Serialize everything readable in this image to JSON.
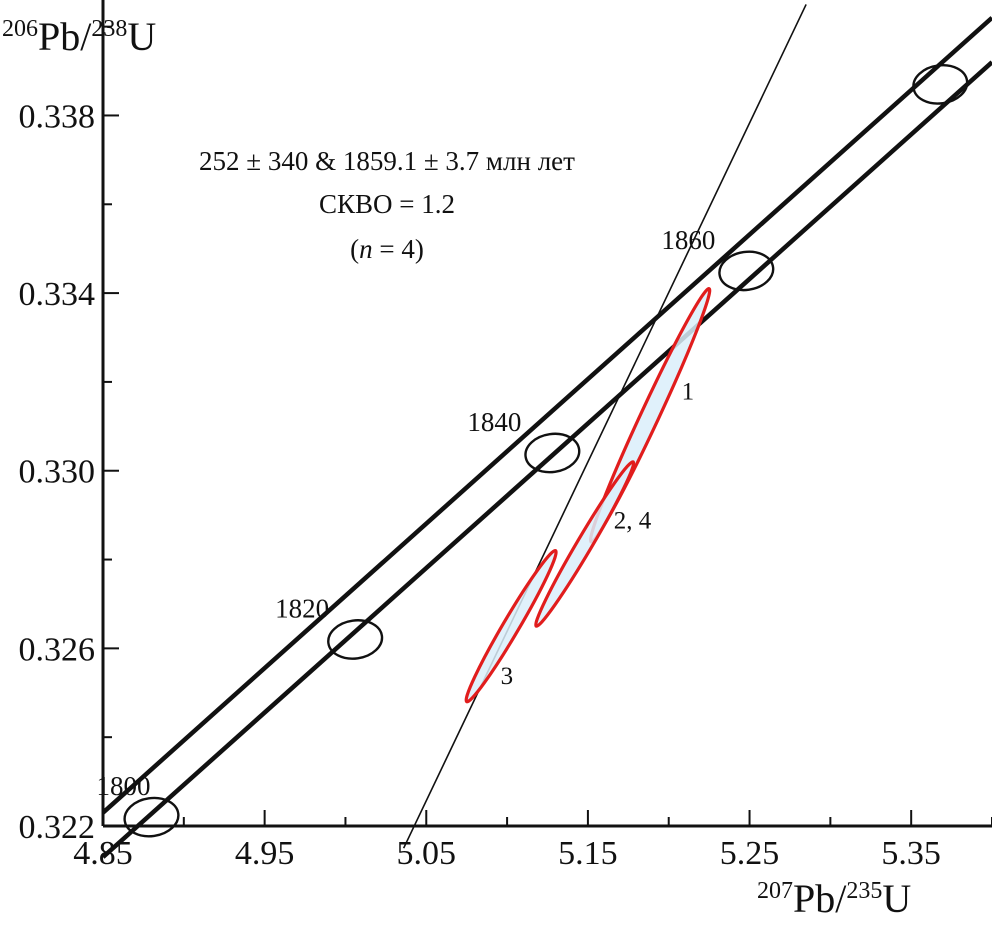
{
  "chart_data": {
    "type": "scatter",
    "subtype": "concordia-diagram",
    "xlabel": {
      "sup1": "207",
      "base1": "Pb/",
      "sup2": "235",
      "base2": "U"
    },
    "ylabel": {
      "sup1": "206",
      "base1": "Pb/",
      "sup2": "238",
      "base2": "U"
    },
    "xlim": [
      4.85,
      5.4
    ],
    "ylim": [
      0.322,
      0.3406
    ],
    "x_ticks": [
      4.85,
      4.95,
      5.05,
      5.15,
      5.25,
      5.35
    ],
    "x_tick_labels": [
      "4.85",
      "4.95",
      "5.05",
      "5.15",
      "5.25",
      "5.35"
    ],
    "y_ticks": [
      0.322,
      0.326,
      0.33,
      0.334,
      0.338
    ],
    "y_tick_labels": [
      "0.322",
      "0.326",
      "0.330",
      "0.334",
      "0.338"
    ],
    "grid": false,
    "annotation": {
      "line1": "252 ± 340 & 1859.1 ± 3.7 млн лет",
      "line2": "СКВО = 1.2",
      "line3_open": "(",
      "line3_n": "n",
      "line3_rest": " = 4)"
    },
    "concordia_band": {
      "upper_edge": [
        [
          4.85,
          0.3223
        ],
        [
          5.4,
          0.3402
        ]
      ],
      "lower_edge": [
        [
          4.85,
          0.3213
        ],
        [
          5.4,
          0.3392
        ]
      ]
    },
    "age_markers": [
      {
        "label": "1800",
        "x": 4.88,
        "y": 0.3222
      },
      {
        "label": "1820",
        "x": 5.006,
        "y": 0.3262
      },
      {
        "label": "1840",
        "x": 5.128,
        "y": 0.3304
      },
      {
        "label": "1860",
        "x": 5.248,
        "y": 0.3345
      },
      {
        "label": "",
        "x": 5.368,
        "y": 0.3387
      }
    ],
    "discordia": {
      "upper_intercept_age": "1859.1",
      "points": [
        [
          5.036,
          0.3215
        ],
        [
          5.285,
          0.3405
        ]
      ]
    },
    "data_points": [
      {
        "label": "1",
        "x": 5.188,
        "y": 0.3306,
        "ellipse_end_a": [
          5.152,
          0.3284
        ],
        "ellipse_end_b": [
          5.225,
          0.3341
        ]
      },
      {
        "label": "2, 4",
        "x": 5.148,
        "y": 0.3282,
        "ellipse_end_a": [
          5.118,
          0.3265
        ],
        "ellipse_end_b": [
          5.178,
          0.3302
        ]
      },
      {
        "label": "3",
        "x": 5.102,
        "y": 0.3263,
        "ellipse_end_a": [
          5.075,
          0.3248
        ],
        "ellipse_end_b": [
          5.13,
          0.3282
        ]
      }
    ],
    "colors": {
      "ellipse_stroke": "#e11d1d",
      "ellipse_fill": "#dbeefa",
      "band": "#111111"
    }
  }
}
